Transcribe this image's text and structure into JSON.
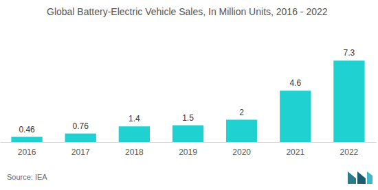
{
  "chart_data": {
    "type": "bar",
    "title": "Global Battery-Electric Vehicle Sales, In Million Units, 2016 - 2022",
    "categories": [
      "2016",
      "2017",
      "2018",
      "2019",
      "2020",
      "2021",
      "2022"
    ],
    "values": [
      0.46,
      0.76,
      1.4,
      1.5,
      2,
      4.6,
      7.3
    ],
    "color": "#1fd1d1",
    "ylim": [
      0,
      8
    ],
    "data_labels": true,
    "tick_labels": "x",
    "grid": false,
    "annotations": [
      "Source: IEA"
    ]
  }
}
